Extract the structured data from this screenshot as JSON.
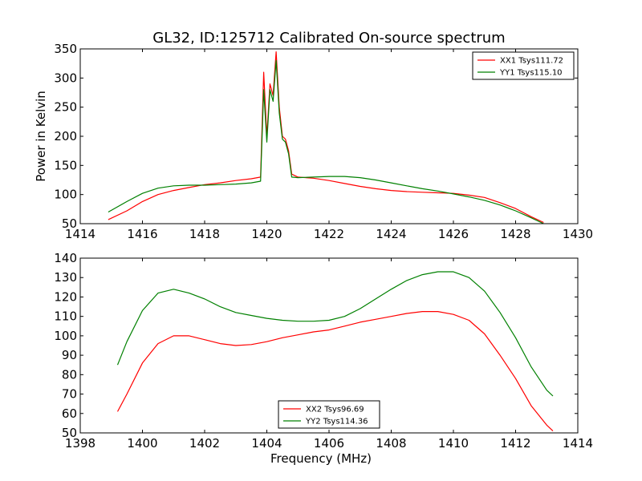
{
  "figure_title": "GL32, ID:125712 Calibrated On-source spectrum",
  "chart_data": [
    {
      "type": "line",
      "ylabel": "Power in Kelvin",
      "xlabel": "",
      "xlim": [
        1414,
        1430
      ],
      "ylim": [
        50,
        350
      ],
      "xticks": [
        1414,
        1416,
        1418,
        1420,
        1422,
        1424,
        1426,
        1428,
        1430
      ],
      "yticks": [
        50,
        100,
        150,
        200,
        250,
        300,
        350
      ],
      "grid": false,
      "legend_position": "top-right",
      "series": [
        {
          "name": "XX1 Tsys111.72",
          "color": "#ff0000",
          "x": [
            1414.9,
            1415.5,
            1416,
            1416.5,
            1417,
            1417.5,
            1418,
            1418.5,
            1419,
            1419.5,
            1419.8,
            1419.9,
            1420.0,
            1420.1,
            1420.2,
            1420.3,
            1420.4,
            1420.5,
            1420.6,
            1420.7,
            1420.8,
            1421,
            1421.5,
            1422,
            1422.5,
            1423,
            1423.5,
            1424,
            1424.5,
            1425,
            1425.5,
            1426,
            1426.5,
            1427,
            1427.5,
            1428,
            1428.5,
            1428.9
          ],
          "y": [
            57,
            72,
            88,
            100,
            107,
            112,
            117,
            120,
            124,
            127,
            130,
            310,
            200,
            290,
            270,
            345,
            250,
            200,
            195,
            175,
            135,
            130,
            128,
            124,
            119,
            114,
            110,
            107,
            105,
            104,
            103,
            102,
            99,
            95,
            86,
            76,
            62,
            52
          ]
        },
        {
          "name": "YY1 Tsys115.10",
          "color": "#008000",
          "x": [
            1414.9,
            1415.5,
            1416,
            1416.5,
            1417,
            1417.5,
            1418,
            1418.5,
            1419,
            1419.5,
            1419.8,
            1419.9,
            1420.0,
            1420.1,
            1420.2,
            1420.3,
            1420.4,
            1420.5,
            1420.6,
            1420.7,
            1420.8,
            1421,
            1421.5,
            1422,
            1422.5,
            1423,
            1423.5,
            1424,
            1424.5,
            1425,
            1425.5,
            1426,
            1426.5,
            1427,
            1427.5,
            1428,
            1428.5,
            1428.9
          ],
          "y": [
            70,
            88,
            102,
            111,
            115,
            116,
            116,
            117,
            118,
            120,
            123,
            280,
            190,
            280,
            260,
            330,
            240,
            195,
            190,
            170,
            130,
            129,
            130,
            131,
            131,
            129,
            125,
            120,
            115,
            110,
            106,
            101,
            96,
            90,
            82,
            72,
            60,
            50
          ]
        }
      ]
    },
    {
      "type": "line",
      "ylabel": "",
      "xlabel": "Frequency (MHz)",
      "xlim": [
        1398,
        1414
      ],
      "ylim": [
        50,
        140
      ],
      "xticks": [
        1398,
        1400,
        1402,
        1404,
        1406,
        1408,
        1410,
        1412,
        1414
      ],
      "yticks": [
        50,
        60,
        70,
        80,
        90,
        100,
        110,
        120,
        130,
        140
      ],
      "grid": false,
      "legend_position": "bottom-center",
      "series": [
        {
          "name": "XX2 Tsys96.69",
          "color": "#ff0000",
          "x": [
            1399.2,
            1399.5,
            1400,
            1400.5,
            1401,
            1401.5,
            1402,
            1402.5,
            1403,
            1403.5,
            1404,
            1404.5,
            1405,
            1405.5,
            1406,
            1406.5,
            1407,
            1407.5,
            1408,
            1408.5,
            1409,
            1409.5,
            1410,
            1410.5,
            1411,
            1411.5,
            1412,
            1412.5,
            1413,
            1413.2
          ],
          "y": [
            61,
            70,
            86,
            96,
            100,
            100,
            98,
            96,
            95,
            95.5,
            97,
            99,
            100.5,
            102,
            103,
            105,
            107,
            108.5,
            110,
            111.5,
            112.5,
            112.5,
            111,
            108,
            101,
            90,
            78,
            64,
            54,
            51
          ]
        },
        {
          "name": "YY2 Tsys114.36",
          "color": "#008000",
          "x": [
            1399.2,
            1399.5,
            1400,
            1400.5,
            1401,
            1401.5,
            1402,
            1402.5,
            1403,
            1403.5,
            1404,
            1404.5,
            1405,
            1405.5,
            1406,
            1406.5,
            1407,
            1407.5,
            1408,
            1408.5,
            1409,
            1409.5,
            1410,
            1410.5,
            1411,
            1411.5,
            1412,
            1412.5,
            1413,
            1413.2
          ],
          "y": [
            85,
            97,
            113,
            122,
            124,
            122,
            119,
            115,
            112,
            110.5,
            109,
            108,
            107.5,
            107.5,
            108,
            110,
            114,
            119,
            124,
            128.5,
            131.5,
            133,
            133,
            130,
            123,
            112,
            99,
            84,
            72,
            69
          ]
        }
      ]
    }
  ]
}
